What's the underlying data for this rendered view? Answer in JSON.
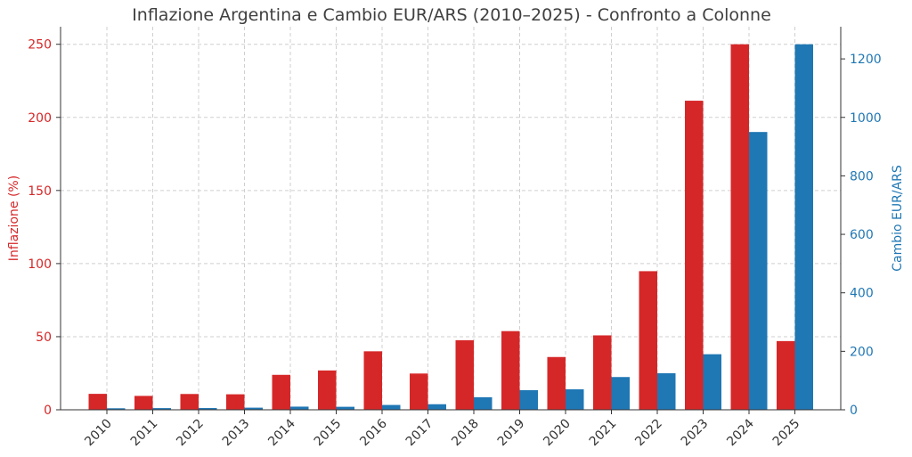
{
  "chart_data": {
    "type": "bar",
    "title": "Inflazione Argentina e Cambio EUR/ARS (2010–2025) - Confronto a Colonne",
    "categories": [
      "2010",
      "2011",
      "2012",
      "2013",
      "2014",
      "2015",
      "2016",
      "2017",
      "2018",
      "2019",
      "2020",
      "2021",
      "2022",
      "2023",
      "2024",
      "2025"
    ],
    "series": [
      {
        "name": "Inflazione (%)",
        "axis": "left",
        "color": "#d62728",
        "values": [
          10.9,
          9.5,
          10.8,
          10.6,
          23.9,
          26.9,
          40.0,
          24.8,
          47.6,
          53.8,
          36.1,
          50.9,
          94.8,
          211.4,
          250.0,
          47.0
        ]
      },
      {
        "name": "Cambio EUR/ARS",
        "axis": "right",
        "color": "#1f77b4",
        "values": [
          5.2,
          5.8,
          6.0,
          7.3,
          10.8,
          10.3,
          16.5,
          19.0,
          43.0,
          67.0,
          70.0,
          112.0,
          125.0,
          190.0,
          950.0,
          1250.0
        ]
      }
    ],
    "ylabel": "Inflazione (%)",
    "y2label": "Cambio EUR/ARS",
    "xlabel": "",
    "ylim": [
      0,
      262
    ],
    "y2lim": [
      0,
      1310
    ],
    "yticks": [
      0,
      50,
      100,
      150,
      200,
      250
    ],
    "y2ticks": [
      0,
      200,
      400,
      600,
      800,
      1000,
      1200
    ],
    "grid": true,
    "legend": "none"
  }
}
